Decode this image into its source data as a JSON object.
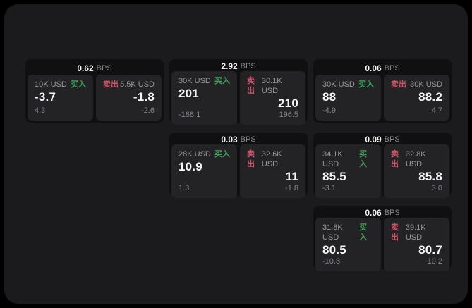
{
  "labels": {
    "bps_unit": "BPS",
    "buy": "买入",
    "sell": "卖出"
  },
  "colors": {
    "buy": "#3fa257",
    "sell": "#cc5568",
    "surface": "#1b1b1d",
    "card": "#101011",
    "panel": "#232326"
  },
  "cards": [
    {
      "bps": "0.62",
      "col": 1,
      "row": 1,
      "buy": {
        "amount": "10K USD",
        "price": "-3.7",
        "delta": "4.3"
      },
      "sell": {
        "amount": "5.5K USD",
        "price": "-1.8",
        "delta": "-2.6"
      }
    },
    {
      "bps": "2.92",
      "col": 2,
      "row": 1,
      "buy": {
        "amount": "30K USD",
        "price": "201",
        "delta": "-188.1"
      },
      "sell": {
        "amount": "30.1K USD",
        "price": "210",
        "delta": "196.5"
      }
    },
    {
      "bps": "0.06",
      "col": 3,
      "row": 1,
      "buy": {
        "amount": "30K USD",
        "price": "88",
        "delta": "-4.9"
      },
      "sell": {
        "amount": "30K USD",
        "price": "88.2",
        "delta": "4.7"
      }
    },
    {
      "bps": "0.03",
      "col": 2,
      "row": 2,
      "buy": {
        "amount": "28K USD",
        "price": "10.9",
        "delta": "1.3"
      },
      "sell": {
        "amount": "32.6K USD",
        "price": "11",
        "delta": "-1.8"
      }
    },
    {
      "bps": "0.09",
      "col": 3,
      "row": 2,
      "buy": {
        "amount": "34.1K USD",
        "price": "85.5",
        "delta": "-3.1"
      },
      "sell": {
        "amount": "32.8K USD",
        "price": "85.8",
        "delta": "3.0"
      }
    },
    {
      "bps": "0.06",
      "col": 3,
      "row": 3,
      "buy": {
        "amount": "31.8K USD",
        "price": "80.5",
        "delta": "-10.8"
      },
      "sell": {
        "amount": "39.1K USD",
        "price": "80.7",
        "delta": "10.2"
      }
    }
  ]
}
